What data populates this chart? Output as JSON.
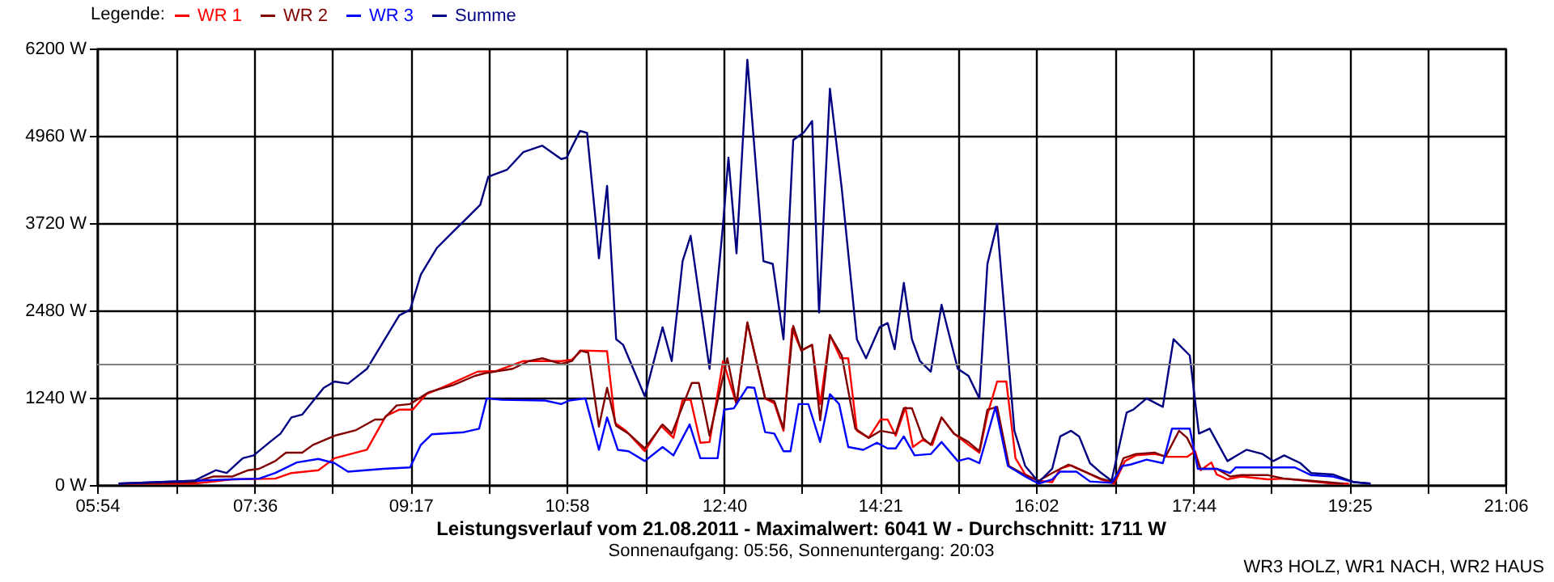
{
  "chart_data": {
    "type": "line",
    "title": "Leistungsverlauf vom 21.08.2011 - Maximalwert: 6041 W - Durchschnitt: 1711 W",
    "subtitle": "Sonnenaufgang: 05:56, Sonnenuntergang: 20:03",
    "annotations": [
      "WR3 HOLZ, WR1 NACH, WR2 HAUS"
    ],
    "legend_title": "Legende:",
    "legend": "top left",
    "grid": true,
    "xlim": [
      5.9,
      21.1
    ],
    "xticks": [
      {
        "value": 5.9,
        "label": "05:54"
      },
      {
        "value": 6.75,
        "label": null
      },
      {
        "value": 7.6,
        "label": "07:36"
      },
      {
        "value": 8.4417,
        "label": null
      },
      {
        "value": 9.2833,
        "label": "09:17"
      },
      {
        "value": 10.125,
        "label": null
      },
      {
        "value": 10.9667,
        "label": "10:58"
      },
      {
        "value": 11.8167,
        "label": null
      },
      {
        "value": 12.6667,
        "label": "12:40"
      },
      {
        "value": 13.5083,
        "label": null
      },
      {
        "value": 14.35,
        "label": "14:21"
      },
      {
        "value": 15.1917,
        "label": null
      },
      {
        "value": 16.0333,
        "label": "16:02"
      },
      {
        "value": 16.8833,
        "label": null
      },
      {
        "value": 17.7333,
        "label": "17:44"
      },
      {
        "value": 18.575,
        "label": null
      },
      {
        "value": 19.4167,
        "label": "19:25"
      },
      {
        "value": 20.2583,
        "label": null
      },
      {
        "value": 21.1,
        "label": "21:06"
      }
    ],
    "ylim": [
      0,
      6200
    ],
    "yticks": [
      {
        "value": 0,
        "label": "0 W"
      },
      {
        "value": 1240,
        "label": "1240 W"
      },
      {
        "value": 2480,
        "label": "2480 W"
      },
      {
        "value": 3720,
        "label": "3720 W"
      },
      {
        "value": 4960,
        "label": "4960 W"
      },
      {
        "value": 6200,
        "label": "6200 W"
      }
    ],
    "ref_lines": [
      {
        "axis": "y",
        "value": 1711,
        "label": null,
        "color": "#808080"
      }
    ],
    "series": [
      {
        "name": "WR 1",
        "color": "#ff0000",
        "x": [
          6.133,
          6.948,
          7.356,
          7.822,
          7.997,
          8.288,
          8.463,
          8.812,
          9.016,
          9.161,
          9.307,
          9.453,
          9.686,
          10.006,
          10.21,
          10.501,
          10.909,
          11.025,
          11.13,
          11.404,
          11.491,
          11.607,
          11.811,
          11.986,
          12.12,
          12.219,
          12.306,
          12.411,
          12.51,
          12.656,
          12.801,
          12.918,
          13.11,
          13.209,
          13.308,
          13.401,
          13.5,
          13.617,
          13.704,
          13.809,
          13.925,
          14.007,
          14.1,
          14.228,
          14.356,
          14.432,
          14.519,
          14.624,
          14.705,
          14.81,
          14.915,
          15.014,
          15.148,
          15.305,
          15.422,
          15.509,
          15.614,
          15.713,
          15.812,
          15.917,
          16.062,
          16.208,
          16.295,
          16.412,
          16.557,
          16.732,
          16.878,
          16.994,
          17.111,
          17.314,
          17.46,
          17.664,
          17.751,
          17.81,
          17.926,
          17.984,
          18.1,
          18.246,
          18.537,
          18.712,
          18.945,
          19.236,
          19.411
        ],
        "values": [
          20,
          20,
          80,
          90,
          170,
          210,
          380,
          500,
          980,
          1070,
          1070,
          1290,
          1420,
          1610,
          1620,
          1760,
          1760,
          1780,
          1910,
          1900,
          880,
          770,
          480,
          840,
          670,
          1210,
          1210,
          600,
          610,
          1760,
          1150,
          2300,
          1230,
          1160,
          770,
          2220,
          1910,
          1990,
          1150,
          2130,
          1800,
          1800,
          770,
          670,
          930,
          930,
          700,
          1100,
          540,
          640,
          570,
          960,
          730,
          570,
          460,
          1000,
          1470,
          1470,
          380,
          150,
          60,
          40,
          230,
          280,
          190,
          80,
          20,
          340,
          420,
          440,
          400,
          400,
          480,
          210,
          320,
          150,
          80,
          120,
          80,
          90,
          60,
          20,
          20
        ]
      },
      {
        "name": "WR 2",
        "color": "#800000",
        "x": [
          6.133,
          6.948,
          7.152,
          7.356,
          7.531,
          7.647,
          7.822,
          7.938,
          8.113,
          8.23,
          8.463,
          8.695,
          8.899,
          8.987,
          9.132,
          9.278,
          9.482,
          9.744,
          9.977,
          10.093,
          10.384,
          10.559,
          10.705,
          10.909,
          11.025,
          11.112,
          11.2,
          11.316,
          11.404,
          11.502,
          11.636,
          11.811,
          12.003,
          12.102,
          12.318,
          12.394,
          12.51,
          12.702,
          12.801,
          12.918,
          13.11,
          13.209,
          13.308,
          13.413,
          13.5,
          13.617,
          13.704,
          13.809,
          13.937,
          14.083,
          14.228,
          14.356,
          14.519,
          14.606,
          14.694,
          14.81,
          14.898,
          15.014,
          15.148,
          15.305,
          15.422,
          15.509,
          15.614,
          15.742,
          15.917,
          16.062,
          16.208,
          16.383,
          16.557,
          16.732,
          16.878,
          16.977,
          17.111,
          17.314,
          17.431,
          17.577,
          17.664,
          17.751,
          17.81,
          17.984,
          18.13,
          18.246,
          18.537,
          18.712,
          19.003,
          19.352
        ],
        "values": [
          20,
          40,
          120,
          120,
          210,
          230,
          340,
          460,
          460,
          570,
          700,
          780,
          930,
          930,
          1130,
          1150,
          1320,
          1420,
          1550,
          1590,
          1650,
          1760,
          1800,
          1720,
          1760,
          1910,
          1880,
          830,
          1380,
          840,
          730,
          520,
          860,
          730,
          1450,
          1450,
          700,
          1800,
          1150,
          2310,
          1230,
          1190,
          800,
          2260,
          1910,
          1990,
          920,
          2130,
          1840,
          800,
          670,
          770,
          730,
          1090,
          1090,
          670,
          570,
          960,
          730,
          610,
          480,
          1070,
          1110,
          270,
          140,
          60,
          170,
          290,
          190,
          90,
          40,
          380,
          440,
          460,
          400,
          770,
          670,
          440,
          230,
          230,
          120,
          140,
          140,
          90,
          60,
          20
        ]
      },
      {
        "name": "WR 3",
        "color": "#0000ff",
        "x": [
          6.133,
          6.948,
          7.356,
          7.647,
          7.822,
          8.055,
          8.288,
          8.463,
          8.608,
          8.987,
          9.278,
          9.394,
          9.511,
          9.86,
          10.023,
          10.105,
          10.268,
          10.734,
          10.909,
          10.996,
          11.17,
          11.316,
          11.404,
          11.52,
          11.636,
          11.811,
          12.003,
          12.12,
          12.295,
          12.411,
          12.597,
          12.667,
          12.772,
          12.918,
          12.993,
          13.11,
          13.209,
          13.308,
          13.384,
          13.471,
          13.576,
          13.704,
          13.809,
          13.908,
          14.007,
          14.17,
          14.316,
          14.432,
          14.519,
          14.606,
          14.723,
          14.898,
          15.014,
          15.189,
          15.305,
          15.422,
          15.596,
          15.73,
          15.917,
          16.062,
          16.208,
          16.295,
          16.47,
          16.616,
          16.849,
          16.965,
          17.053,
          17.227,
          17.402,
          17.501,
          17.693,
          17.78,
          17.984,
          18.129,
          18.188,
          18.828,
          19.003,
          19.236,
          19.469,
          19.644
        ],
        "values": [
          20,
          60,
          80,
          90,
          170,
          320,
          370,
          310,
          190,
          230,
          250,
          570,
          720,
          750,
          800,
          1230,
          1210,
          1200,
          1150,
          1200,
          1230,
          500,
          960,
          500,
          480,
          340,
          540,
          420,
          860,
          380,
          380,
          1070,
          1090,
          1390,
          1380,
          750,
          730,
          480,
          480,
          1150,
          1150,
          610,
          1290,
          1150,
          540,
          500,
          600,
          520,
          520,
          690,
          420,
          440,
          610,
          340,
          380,
          310,
          1110,
          270,
          120,
          20,
          80,
          190,
          190,
          50,
          30,
          270,
          290,
          360,
          310,
          800,
          800,
          230,
          230,
          170,
          250,
          250,
          140,
          120,
          40,
          20
        ]
      },
      {
        "name": "Summe",
        "color": "#000080",
        "x": [
          6.133,
          6.948,
          7.181,
          7.298,
          7.472,
          7.589,
          7.764,
          7.88,
          7.997,
          8.113,
          8.346,
          8.463,
          8.608,
          8.812,
          8.987,
          9.161,
          9.278,
          9.394,
          9.569,
          9.744,
          9.86,
          10.035,
          10.122,
          10.326,
          10.501,
          10.705,
          10.909,
          10.967,
          11.112,
          11.188,
          11.287,
          11.316,
          11.404,
          11.502,
          11.578,
          11.811,
          12.003,
          12.102,
          12.219,
          12.306,
          12.51,
          12.656,
          12.714,
          12.801,
          12.918,
          13.092,
          13.192,
          13.308,
          13.413,
          13.529,
          13.617,
          13.692,
          13.809,
          13.937,
          14.1,
          14.199,
          14.345,
          14.432,
          14.508,
          14.607,
          14.694,
          14.781,
          14.898,
          15.014,
          15.189,
          15.305,
          15.422,
          15.509,
          15.614,
          15.8,
          15.917,
          16.062,
          16.208,
          16.295,
          16.412,
          16.499,
          16.616,
          16.72,
          16.849,
          17.012,
          17.082,
          17.227,
          17.402,
          17.518,
          17.693,
          17.734,
          17.792,
          17.908,
          18.1,
          18.304,
          18.479,
          18.595,
          18.712,
          18.887,
          19.003,
          19.236,
          19.469,
          19.644
        ],
        "values": [
          20,
          60,
          210,
          170,
          380,
          420,
          610,
          730,
          960,
          1000,
          1380,
          1470,
          1440,
          1650,
          2030,
          2410,
          2490,
          2990,
          3370,
          3600,
          3750,
          3980,
          4380,
          4480,
          4730,
          4820,
          4630,
          4650,
          5030,
          5000,
          3670,
          3220,
          4250,
          2070,
          1990,
          1260,
          2240,
          1760,
          3180,
          3540,
          1650,
          3710,
          4650,
          3290,
          6041,
          3180,
          3140,
          2070,
          4900,
          5010,
          5170,
          2450,
          5630,
          4210,
          2070,
          1800,
          2240,
          2300,
          1930,
          2870,
          2070,
          1760,
          1610,
          2560,
          1650,
          1550,
          1230,
          3140,
          3710,
          770,
          270,
          40,
          230,
          690,
          770,
          690,
          310,
          190,
          60,
          1030,
          1070,
          1230,
          1110,
          2070,
          1840,
          1380,
          730,
          800,
          340,
          500,
          440,
          340,
          420,
          310,
          170,
          150,
          40,
          20
        ]
      }
    ]
  }
}
